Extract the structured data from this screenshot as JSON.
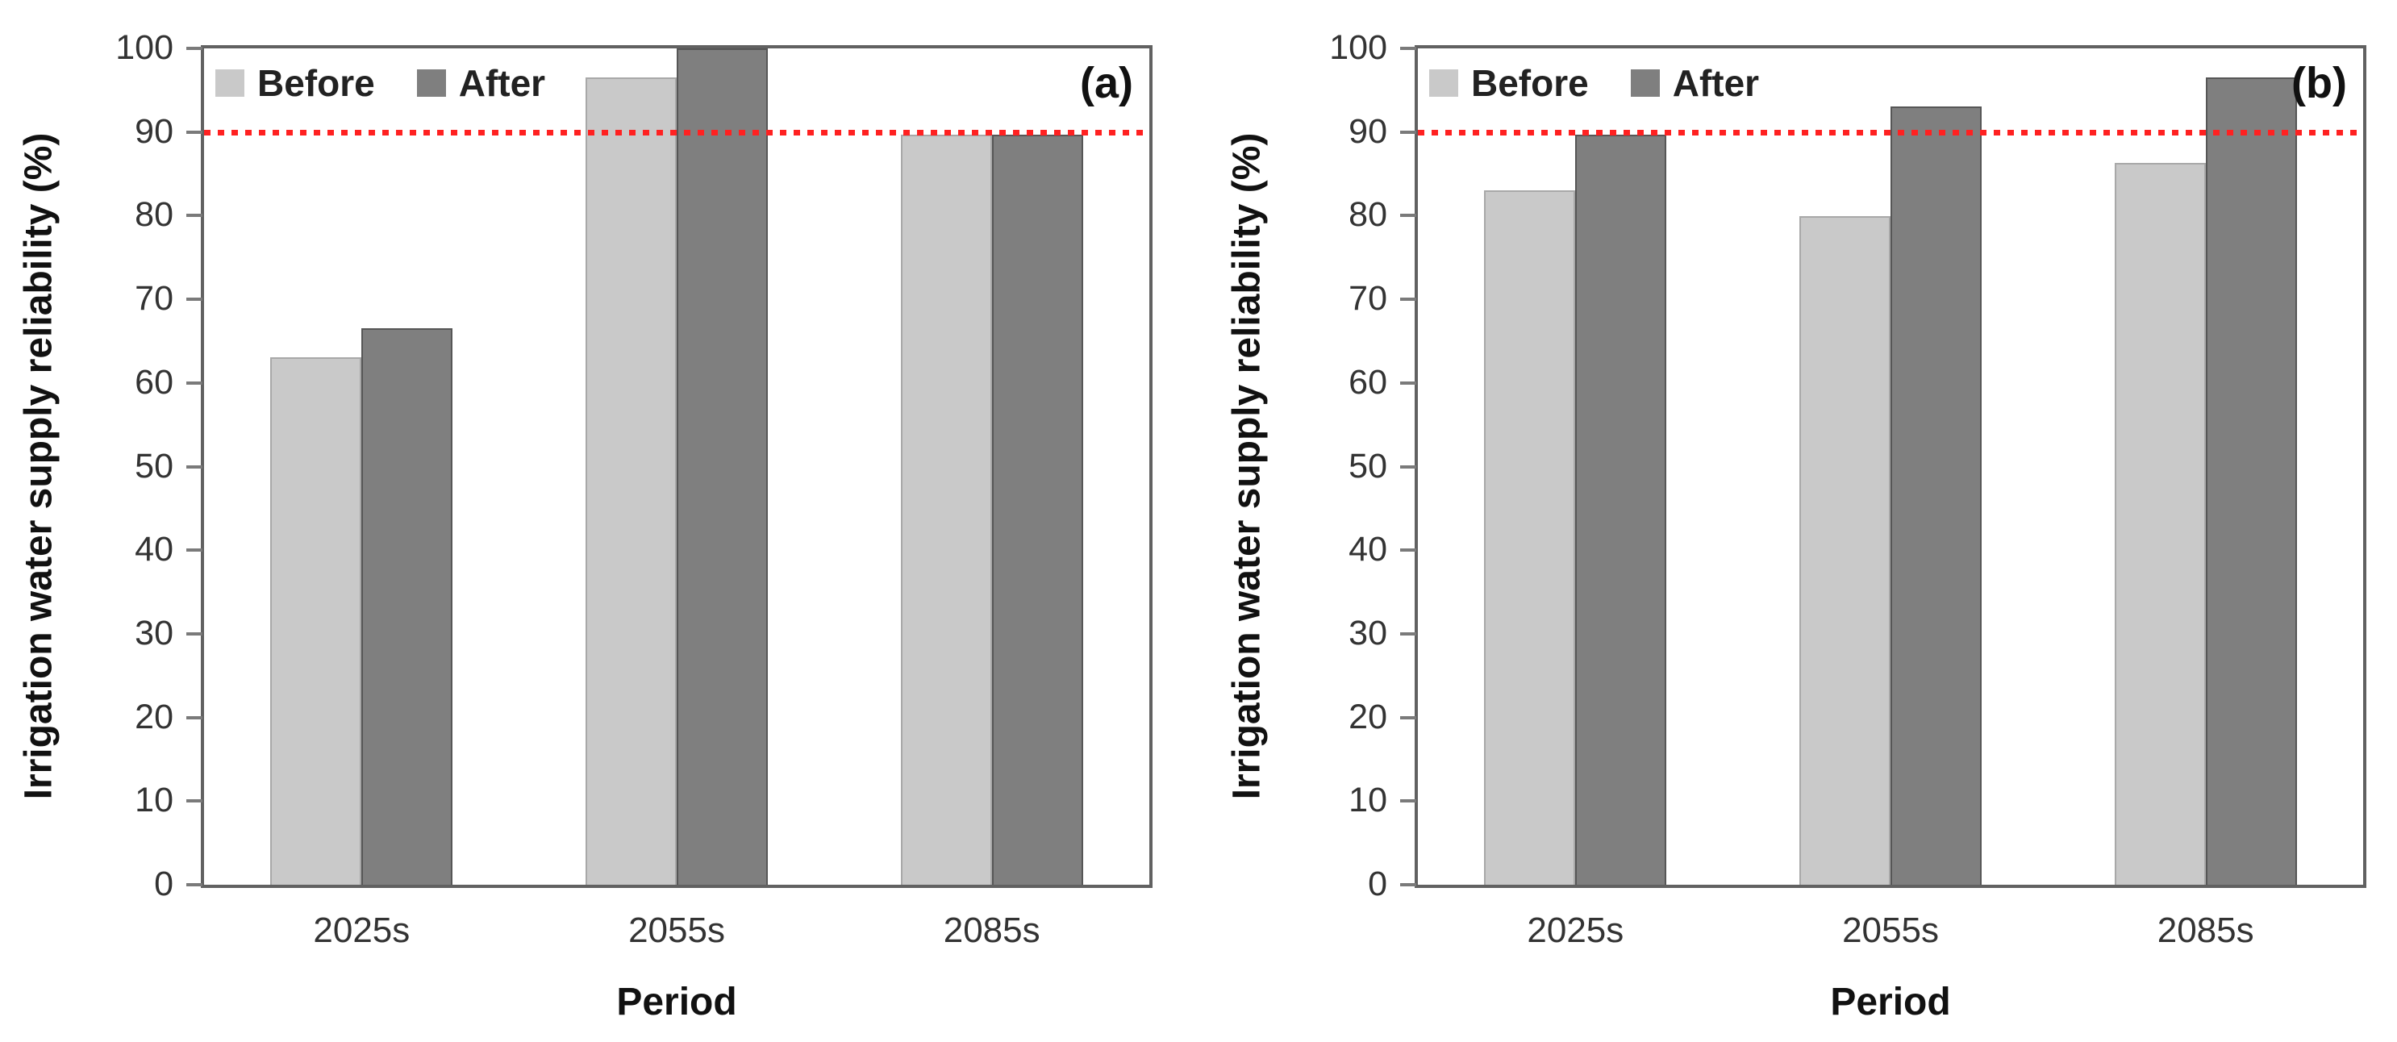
{
  "figure": {
    "background": "#ffffff",
    "frame_color": "#616161",
    "tick_color": "#7a7a7a",
    "text_color": "#333333"
  },
  "chart_data": [
    {
      "type": "bar",
      "panel_label": "(a)",
      "title": "",
      "xlabel": "Period",
      "ylabel": "Irrigation water supply reliability (%)",
      "categories": [
        "2025s",
        "2055s",
        "2085s"
      ],
      "series": [
        {
          "name": "Before",
          "color": "#c9c9c9",
          "border_color": "#a8a8a8",
          "values": [
            63.1,
            96.5,
            89.7
          ]
        },
        {
          "name": "After",
          "color": "#7f7f7f",
          "border_color": "#565656",
          "values": [
            66.5,
            100.0,
            89.7
          ]
        }
      ],
      "ylim": [
        0,
        100
      ],
      "yticks": [
        0,
        10,
        20,
        30,
        40,
        50,
        60,
        70,
        80,
        90,
        100
      ],
      "threshold": {
        "value": 90,
        "color": "#ff2121",
        "style": "dotted"
      },
      "legend_position": "top-left",
      "grid": false
    },
    {
      "type": "bar",
      "panel_label": "(b)",
      "title": "",
      "xlabel": "Period",
      "ylabel": "Irrigation water supply reliability (%)",
      "categories": [
        "2025s",
        "2055s",
        "2085s"
      ],
      "series": [
        {
          "name": "Before",
          "color": "#c9c9c9",
          "border_color": "#a8a8a8",
          "values": [
            83.0,
            79.9,
            86.3
          ]
        },
        {
          "name": "After",
          "color": "#7f7f7f",
          "border_color": "#565656",
          "values": [
            89.7,
            93.1,
            96.5
          ]
        }
      ],
      "ylim": [
        0,
        100
      ],
      "yticks": [
        0,
        10,
        20,
        30,
        40,
        50,
        60,
        70,
        80,
        90,
        100
      ],
      "threshold": {
        "value": 90,
        "color": "#ff2121",
        "style": "dotted"
      },
      "legend_position": "top-left",
      "grid": false
    }
  ]
}
